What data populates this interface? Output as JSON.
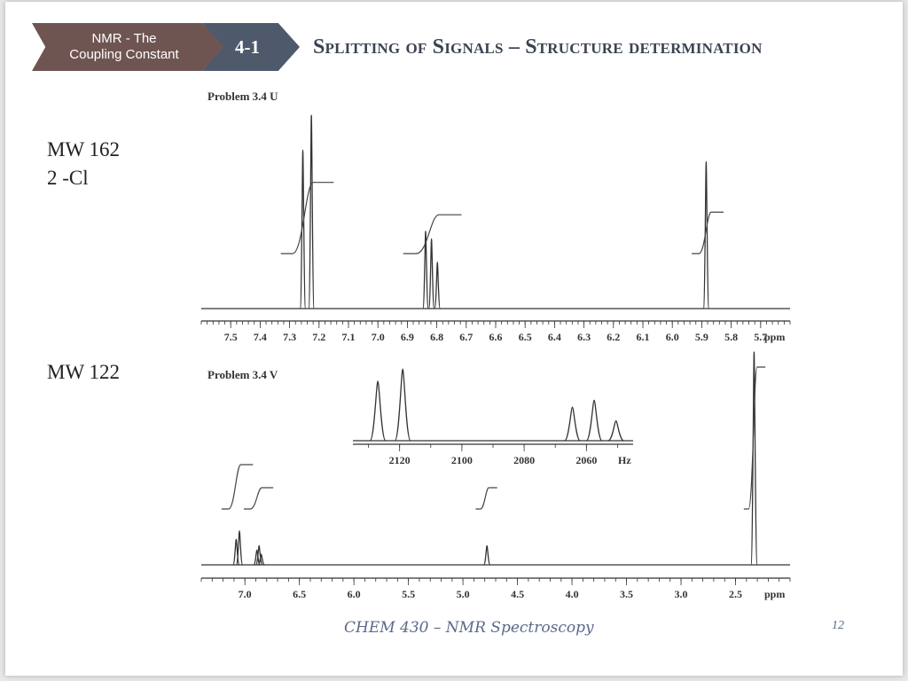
{
  "header": {
    "topic_line1": "NMR - The",
    "topic_line2": "Coupling Constant",
    "section": "4-1",
    "title": "Splitting of Signals – Structure determination"
  },
  "labels": {
    "mw1_line1": "MW 162",
    "mw1_line2": "2 -Cl",
    "mw2_line1": "MW 122"
  },
  "footer": {
    "course": "CHEM 430 – NMR Spectroscopy",
    "page": "12"
  },
  "colors": {
    "badge_topic": "#6f5552",
    "badge_section": "#4e5a6b",
    "title": "#3b4352",
    "trace": "#333333"
  },
  "chart_data": [
    {
      "type": "line",
      "title": "Problem 3.4 U",
      "xlabel": "ppm",
      "x_reversed": true,
      "xlim": [
        7.6,
        5.6
      ],
      "x_ticks": [
        7.5,
        7.4,
        7.3,
        7.2,
        7.1,
        7.0,
        6.9,
        6.8,
        6.7,
        6.6,
        6.5,
        6.4,
        6.3,
        6.2,
        6.1,
        6.0,
        5.9,
        5.8,
        5.7
      ],
      "peaks": [
        {
          "x": 7.255,
          "height": 0.82
        },
        {
          "x": 7.226,
          "height": 1.0
        },
        {
          "x": 6.838,
          "height": 0.4
        },
        {
          "x": 6.818,
          "height": 0.36
        },
        {
          "x": 6.798,
          "height": 0.24
        },
        {
          "x": 5.885,
          "height": 0.76
        }
      ],
      "integrals": [
        {
          "from": 7.29,
          "to": 7.19,
          "step": 0.55
        },
        {
          "from": 6.87,
          "to": 6.76,
          "step": 0.3
        },
        {
          "from": 5.91,
          "to": 5.85,
          "step": 0.32
        }
      ]
    },
    {
      "type": "line",
      "title": "Problem 3.4 V",
      "xlabel": "ppm",
      "x_reversed": true,
      "xlim": [
        7.4,
        2.0
      ],
      "x_ticks": [
        7.0,
        6.5,
        6.0,
        5.5,
        5.0,
        4.5,
        4.0,
        3.5,
        3.0,
        2.5
      ],
      "peaks": [
        {
          "x": 7.08,
          "height": 0.12
        },
        {
          "x": 7.05,
          "height": 0.16
        },
        {
          "x": 6.89,
          "height": 0.07
        },
        {
          "x": 6.87,
          "height": 0.09
        },
        {
          "x": 6.85,
          "height": 0.05
        },
        {
          "x": 4.78,
          "height": 0.09
        },
        {
          "x": 2.33,
          "height": 1.0
        }
      ],
      "integrals": [
        {
          "from": 7.15,
          "to": 6.99,
          "step": 0.25
        },
        {
          "from": 6.95,
          "to": 6.8,
          "step": 0.12
        },
        {
          "from": 4.84,
          "to": 4.73,
          "step": 0.12
        },
        {
          "from": 2.38,
          "to": 2.27,
          "step": 0.8
        }
      ]
    },
    {
      "type": "line",
      "title": "",
      "xlabel": "Hz",
      "x_reversed": true,
      "xlim": [
        2135,
        2045
      ],
      "x_ticks": [
        2120,
        2100,
        2080,
        2060
      ],
      "peaks": [
        {
          "x": 2127,
          "height": 0.78
        },
        {
          "x": 2119,
          "height": 0.94
        },
        {
          "x": 2064.5,
          "height": 0.44
        },
        {
          "x": 2057.5,
          "height": 0.53
        },
        {
          "x": 2050.5,
          "height": 0.26
        }
      ]
    }
  ]
}
